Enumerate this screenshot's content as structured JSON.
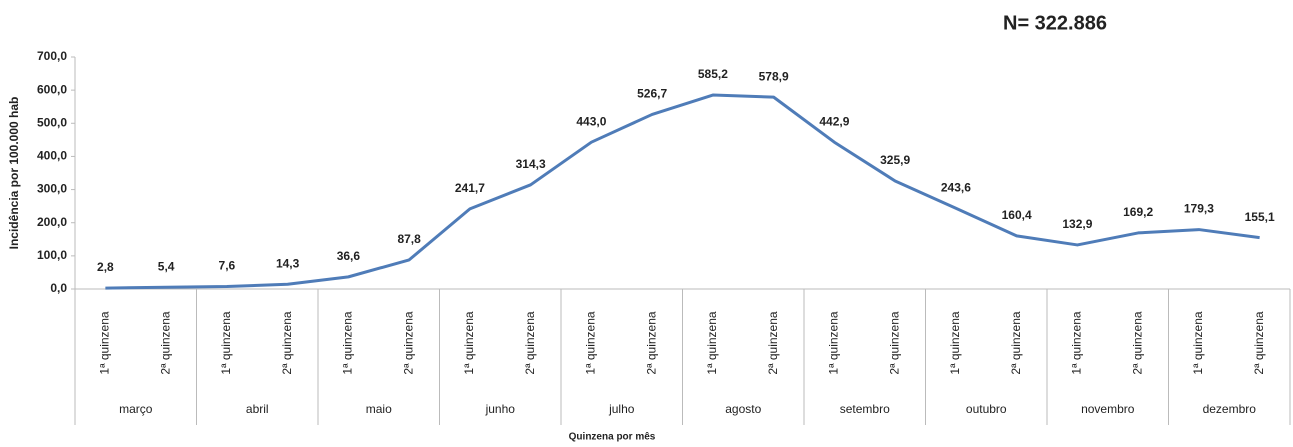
{
  "chart_data": {
    "type": "line",
    "annotation": "N= 322.886",
    "y_label": "Incidência por 100.000 hab",
    "x_label": "Quinzena por mês",
    "categories": [
      "1ª quinzena",
      "2ª quinzena",
      "1ª quinzena",
      "2ª quinzena",
      "1ª quinzena",
      "2ª quinzena",
      "1ª quinzena",
      "2ª quinzena",
      "1ª quinzena",
      "2ª quinzena",
      "1ª quinzena",
      "2ª quinzena",
      "1ª quinzena",
      "2ª quinzena",
      "1ª quinzena",
      "2ª quinzena",
      "1ª quinzena",
      "2ª quinzena",
      "1ª quinzena",
      "2ª quinzena"
    ],
    "groups": [
      "março",
      "abril",
      "maio",
      "junho",
      "julho",
      "agosto",
      "setembro",
      "outubro",
      "novembro",
      "dezembro"
    ],
    "values": [
      2.8,
      5.4,
      7.6,
      14.3,
      36.6,
      87.8,
      241.7,
      314.3,
      443.0,
      526.7,
      585.2,
      578.9,
      442.9,
      325.9,
      243.6,
      160.4,
      132.9,
      169.2,
      179.3,
      155.1
    ],
    "value_labels": [
      "2,8",
      "5,4",
      "7,6",
      "14,3",
      "36,6",
      "87,8",
      "241,7",
      "314,3",
      "443,0",
      "526,7",
      "585,2",
      "578,9",
      "442,9",
      "325,9",
      "243,6",
      "160,4",
      "132,9",
      "169,2",
      "179,3",
      "155,1"
    ],
    "color": "#4f7cb8",
    "ylim": [
      0,
      700
    ],
    "yticks": [
      {
        "value": 0,
        "label": "0,0"
      },
      {
        "value": 100,
        "label": "100,0"
      },
      {
        "value": 200,
        "label": "200,0"
      },
      {
        "value": 300,
        "label": "300,0"
      },
      {
        "value": 400,
        "label": "400,0"
      },
      {
        "value": 500,
        "label": "500,0"
      },
      {
        "value": 600,
        "label": "600,0"
      },
      {
        "value": 700,
        "label": "700,0"
      }
    ],
    "grid": false
  }
}
